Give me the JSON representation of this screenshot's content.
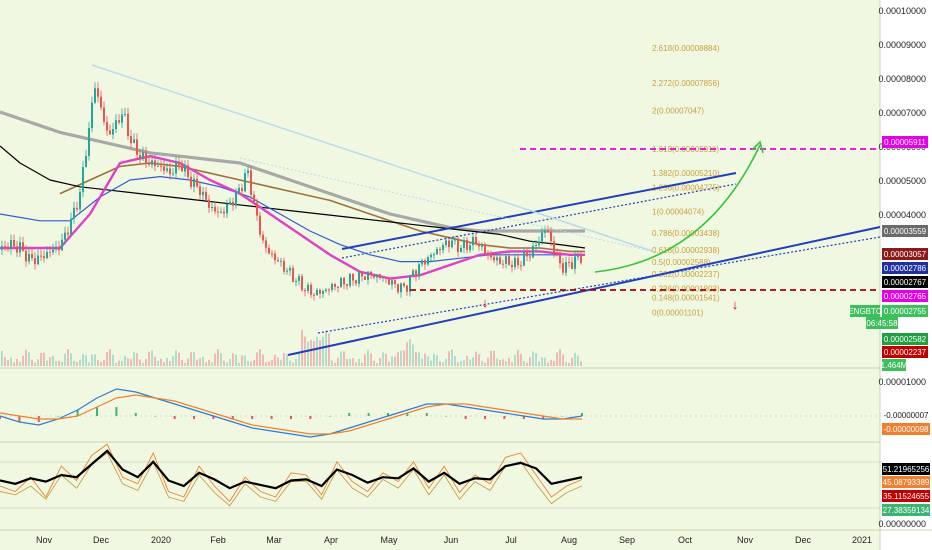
{
  "colors": {
    "background": "#f1f8e1",
    "price_up": "#26a69a",
    "price_down": "#ef5350",
    "ma_pink": "#e040c8",
    "ma_blue": "#2f5bd3",
    "ma_black": "#000000",
    "ma_brown": "#a0703c",
    "ma_gray": "#a8a8a8",
    "channel": "#1f3fbf",
    "target_line": "#e600e6",
    "support_line": "#b00000",
    "arrow_green": "#3bc43b",
    "arrow_red": "#d40000",
    "fib_text": "#c8a040"
  },
  "chart_data": [
    {
      "type": "candlestick",
      "symbol": "ENGBTC",
      "x_ticks": [
        "Nov",
        "Dec",
        "2020",
        "Feb",
        "Mar",
        "Apr",
        "May",
        "Jun",
        "Jul",
        "Aug",
        "Sep",
        "Oct",
        "Nov",
        "Dec",
        "2021"
      ],
      "y_ticks": [
        "0.00010000",
        "0.00009000",
        "0.00008000",
        "0.00007000",
        "0.00006000",
        "0.00005000",
        "0.00004000"
      ],
      "ylim": [
        5e-06,
        0.0001
      ],
      "close_series": [
        [
          0,
          2.95e-05
        ],
        [
          10,
          3.1e-05
        ],
        [
          20,
          3e-05
        ],
        [
          30,
          2.65e-05
        ],
        [
          40,
          2.7e-05
        ],
        [
          50,
          2.9e-05
        ],
        [
          60,
          3.05e-05
        ],
        [
          70,
          3.7e-05
        ],
        [
          80,
          4.6e-05
        ],
        [
          88,
          6.3e-05
        ],
        [
          95,
          7.8e-05
        ],
        [
          100,
          7.2e-05
        ],
        [
          108,
          6.3e-05
        ],
        [
          115,
          6.6e-05
        ],
        [
          123,
          7e-05
        ],
        [
          130,
          6.2e-05
        ],
        [
          140,
          5.7e-05
        ],
        [
          150,
          5.5e-05
        ],
        [
          160,
          5.4e-05
        ],
        [
          170,
          5.2e-05
        ],
        [
          180,
          5.5e-05
        ],
        [
          190,
          5e-05
        ],
        [
          200,
          4.7e-05
        ],
        [
          210,
          4.2e-05
        ],
        [
          220,
          4e-05
        ],
        [
          230,
          4.3e-05
        ],
        [
          240,
          4.7e-05
        ],
        [
          247,
          5.3e-05
        ],
        [
          252,
          4.6e-05
        ],
        [
          258,
          3.7e-05
        ],
        [
          265,
          3e-05
        ],
        [
          275,
          2.7e-05
        ],
        [
          285,
          2.4e-05
        ],
        [
          295,
          2.1e-05
        ],
        [
          305,
          1.8e-05
        ],
        [
          315,
          1.65e-05
        ],
        [
          325,
          1.75e-05
        ],
        [
          335,
          1.9e-05
        ],
        [
          345,
          2e-05
        ],
        [
          355,
          2.1e-05
        ],
        [
          365,
          2.2e-05
        ],
        [
          375,
          2.2e-05
        ],
        [
          385,
          2.1e-05
        ],
        [
          395,
          1.9e-05
        ],
        [
          405,
          1.8e-05
        ],
        [
          412,
          2.2e-05
        ],
        [
          420,
          2.5e-05
        ],
        [
          428,
          2.7e-05
        ],
        [
          436,
          2.9e-05
        ],
        [
          444,
          3.1e-05
        ],
        [
          452,
          3.2e-05
        ],
        [
          460,
          3e-05
        ],
        [
          468,
          3.1e-05
        ],
        [
          476,
          3.2e-05
        ],
        [
          484,
          2.9e-05
        ],
        [
          492,
          2.7e-05
        ],
        [
          500,
          2.6e-05
        ],
        [
          508,
          2.6e-05
        ],
        [
          516,
          2.5e-05
        ],
        [
          524,
          2.7e-05
        ],
        [
          532,
          2.9e-05
        ],
        [
          540,
          3.3e-05
        ],
        [
          546,
          3.6e-05
        ],
        [
          552,
          3.1e-05
        ],
        [
          558,
          2.6e-05
        ],
        [
          564,
          2.4e-05
        ],
        [
          570,
          2.55e-05
        ],
        [
          576,
          2.65e-05
        ],
        [
          582,
          2.75e-05
        ]
      ],
      "moving_averages": [
        {
          "name": "pink",
          "points": [
            [
              0,
              3e-05
            ],
            [
              60,
              3e-05
            ],
            [
              90,
              4e-05
            ],
            [
              120,
              5.5e-05
            ],
            [
              150,
              5.7e-05
            ],
            [
              180,
              5.5e-05
            ],
            [
              210,
              5e-05
            ],
            [
              240,
              4.6e-05
            ],
            [
              270,
              4e-05
            ],
            [
              300,
              3.4e-05
            ],
            [
              330,
              2.8e-05
            ],
            [
              360,
              2.3e-05
            ],
            [
              390,
              2.1e-05
            ],
            [
              420,
              2.2e-05
            ],
            [
              450,
              2.5e-05
            ],
            [
              480,
              2.8e-05
            ],
            [
              510,
              2.9e-05
            ],
            [
              540,
              2.9e-05
            ],
            [
              570,
              2.8e-05
            ],
            [
              585,
              2.8e-05
            ]
          ]
        },
        {
          "name": "blue",
          "points": [
            [
              0,
              4e-05
            ],
            [
              40,
              3.8e-05
            ],
            [
              70,
              3.8e-05
            ],
            [
              100,
              4.5e-05
            ],
            [
              130,
              5e-05
            ],
            [
              160,
              5.1e-05
            ],
            [
              190,
              5e-05
            ],
            [
              220,
              4.8e-05
            ],
            [
              250,
              4.5e-05
            ],
            [
              280,
              4e-05
            ],
            [
              310,
              3.5e-05
            ],
            [
              340,
              3.1e-05
            ],
            [
              370,
              2.8e-05
            ],
            [
              400,
              2.6e-05
            ],
            [
              430,
              2.6e-05
            ],
            [
              460,
              2.7e-05
            ],
            [
              490,
              2.8e-05
            ],
            [
              520,
              2.8e-05
            ],
            [
              550,
              2.8e-05
            ],
            [
              585,
              2.8e-05
            ]
          ]
        },
        {
          "name": "black",
          "points": [
            [
              0,
              6e-05
            ],
            [
              20,
              5.5e-05
            ],
            [
              50,
              5e-05
            ],
            [
              80,
              4.8e-05
            ],
            [
              110,
              4.7e-05
            ],
            [
              140,
              4.6e-05
            ],
            [
              170,
              4.5e-05
            ],
            [
              200,
              4.4e-05
            ],
            [
              230,
              4.3e-05
            ],
            [
              260,
              4.2e-05
            ],
            [
              290,
              4.1e-05
            ],
            [
              320,
              4e-05
            ],
            [
              350,
              3.9e-05
            ],
            [
              380,
              3.8e-05
            ],
            [
              410,
              3.7e-05
            ],
            [
              440,
              3.6e-05
            ],
            [
              470,
              3.5e-05
            ],
            [
              500,
              3.4e-05
            ],
            [
              530,
              3.2e-05
            ],
            [
              560,
              3.1e-05
            ],
            [
              585,
              3e-05
            ]
          ]
        },
        {
          "name": "brown",
          "points": [
            [
              60,
              4.6e-05
            ],
            [
              90,
              5e-05
            ],
            [
              120,
              5.4e-05
            ],
            [
              150,
              5.5e-05
            ],
            [
              180,
              5.4e-05
            ],
            [
              210,
              5.2e-05
            ],
            [
              240,
              5e-05
            ],
            [
              270,
              4.8e-05
            ],
            [
              300,
              4.6e-05
            ],
            [
              330,
              4.4e-05
            ],
            [
              360,
              4.1e-05
            ],
            [
              390,
              3.8e-05
            ],
            [
              420,
              3.5e-05
            ],
            [
              450,
              3.3e-05
            ],
            [
              480,
              3.1e-05
            ],
            [
              510,
              3e-05
            ],
            [
              540,
              3e-05
            ],
            [
              570,
              2.9e-05
            ],
            [
              585,
              2.9e-05
            ]
          ]
        },
        {
          "name": "gray",
          "points": [
            [
              0,
              7e-05
            ],
            [
              30,
              6.7e-05
            ],
            [
              60,
              6.4e-05
            ],
            [
              90,
              6.2e-05
            ],
            [
              120,
              6e-05
            ],
            [
              150,
              5.8e-05
            ],
            [
              180,
              5.7e-05
            ],
            [
              210,
              5.6e-05
            ],
            [
              240,
              5.5e-05
            ],
            [
              270,
              5.2e-05
            ],
            [
              300,
              4.9e-05
            ],
            [
              330,
              4.6e-05
            ],
            [
              360,
              4.3e-05
            ],
            [
              390,
              4e-05
            ],
            [
              420,
              3.8e-05
            ],
            [
              450,
              3.6e-05
            ],
            [
              480,
              3.5e-05
            ],
            [
              510,
              3.5e-05
            ],
            [
              540,
              3.5e-05
            ],
            [
              570,
              3.5e-05
            ],
            [
              585,
              3.5e-05
            ]
          ]
        }
      ],
      "fib_levels": [
        {
          "label": "2.618(0.00008884)",
          "value": 8.884e-05
        },
        {
          "label": "2.272(0.00007856)",
          "value": 7.856e-05
        },
        {
          "label": "2(0.00007047)",
          "value": 7.047e-05
        },
        {
          "label": "1.618(0.00005911)",
          "value": 5.911e-05
        },
        {
          "label": "1.382(0.00005210)",
          "value": 5.21e-05
        },
        {
          "label": "1.236(0.00004775)",
          "value": 4.775e-05
        },
        {
          "label": "1(0.00004074)",
          "value": 4.074e-05
        },
        {
          "label": "0.786(0.00003438)",
          "value": 3.438e-05
        },
        {
          "label": "0.618(0.00002938)",
          "value": 2.938e-05
        },
        {
          "label": "0.5(0.00002588)",
          "value": 2.588e-05
        },
        {
          "label": "0.382(0.00002237)",
          "value": 2.237e-05
        },
        {
          "label": "0.236(0.00001803)",
          "value": 1.803e-05
        },
        {
          "label": "0.148(0.00001541)",
          "value": 1.541e-05
        },
        {
          "label": "0(0.00001101)",
          "value": 1.101e-05
        }
      ],
      "price_labels": [
        {
          "text": "0.00005911",
          "bg": "#e600e6"
        },
        {
          "text": "0.00003559",
          "bg": "#6b6b6b"
        },
        {
          "text": "0.00003057",
          "bg": "#8b1a1a"
        },
        {
          "text": "0.00002786",
          "bg": "#2030a0"
        },
        {
          "text": "0.00002767",
          "bg": "#000000"
        },
        {
          "text": "0.00002765",
          "bg": "#e600e6"
        },
        {
          "text": "ENGBTC",
          "bg": "#3dbf5c"
        },
        {
          "text": "0.00002755",
          "bg": "#3dbf5c"
        },
        {
          "text": "06:45:58",
          "bg": "#3dbf5c"
        },
        {
          "text": "0.00002582",
          "bg": "#1f9f3f"
        },
        {
          "text": "0.00002237",
          "bg": "#c00000"
        },
        {
          "text": "1.464M",
          "bg": "#3dbf5c"
        }
      ],
      "target_level": 5.911e-05,
      "support_level": 2.237e-05,
      "volume_label": "1.464M"
    },
    {
      "type": "line",
      "indicator": "MACD",
      "y_ticks": [
        "0.00001000"
      ],
      "values_label": [
        "-0.00000007",
        "-0.00000098"
      ],
      "series": [
        {
          "values": [
            0,
            -2,
            -3,
            -1,
            2,
            6,
            9,
            8,
            6,
            4,
            2,
            0,
            -2,
            -4,
            -5,
            -6,
            -7,
            -6,
            -4,
            -2,
            0,
            2,
            4,
            4,
            3,
            2,
            1,
            0,
            -1,
            -1,
            0
          ]
        },
        {
          "values": [
            1,
            0,
            -1,
            -1,
            0,
            3,
            6,
            7,
            6,
            5,
            3,
            1,
            -1,
            -3,
            -4,
            -5,
            -6,
            -6,
            -5,
            -3,
            -1,
            1,
            3,
            4,
            4,
            3,
            2,
            1,
            0,
            -1,
            -1
          ]
        }
      ]
    },
    {
      "type": "line",
      "indicator": "Stochastic RSI",
      "y_ticks": [
        "0.00000000"
      ],
      "values_label": [
        "51.21965256",
        "45.08793389",
        "35.11524655",
        "27.38359134"
      ],
      "series": [
        {
          "values": [
            45,
            42,
            47,
            44,
            50,
            48,
            60,
            72,
            55,
            48,
            62,
            45,
            40,
            52,
            46,
            38,
            44,
            41,
            38,
            45,
            46,
            40,
            55,
            50,
            43,
            48,
            47,
            56,
            44,
            52,
            42,
            47,
            46,
            58,
            61,
            56,
            42,
            45,
            48
          ]
        },
        {
          "values": [
            40,
            35,
            48,
            30,
            58,
            45,
            68,
            78,
            48,
            42,
            70,
            35,
            30,
            58,
            40,
            26,
            48,
            35,
            30,
            52,
            50,
            32,
            62,
            44,
            35,
            52,
            44,
            62,
            38,
            58,
            34,
            50,
            42,
            66,
            70,
            50,
            30,
            40,
            46
          ]
        },
        {
          "values": [
            35,
            32,
            40,
            28,
            50,
            38,
            60,
            70,
            42,
            36,
            62,
            30,
            26,
            50,
            34,
            22,
            42,
            30,
            26,
            44,
            44,
            28,
            55,
            38,
            30,
            46,
            38,
            55,
            32,
            50,
            28,
            44,
            36,
            58,
            62,
            42,
            24,
            34,
            40
          ]
        }
      ]
    }
  ]
}
